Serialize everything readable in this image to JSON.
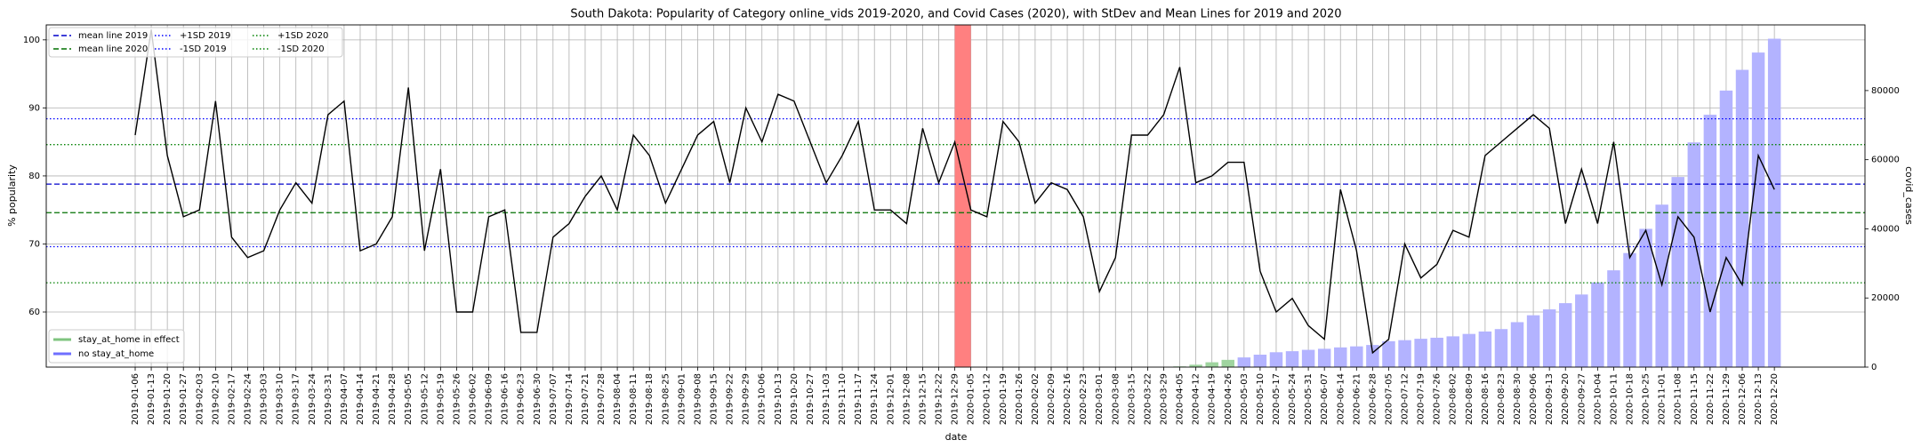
{
  "chart_data": {
    "type": "combo",
    "title": "South Dakota: Popularity of Category online_vids 2019-2020, and Covid Cases (2020), with StDev and Mean Lines for 2019 and 2020",
    "xlabel": "date",
    "ylabel": "% popularity",
    "y2label": "covid_cases",
    "grid": true,
    "categories": [
      "2019-01-06",
      "2019-01-13",
      "2019-01-20",
      "2019-01-27",
      "2019-02-03",
      "2019-02-10",
      "2019-02-17",
      "2019-02-24",
      "2019-03-03",
      "2019-03-10",
      "2019-03-17",
      "2019-03-24",
      "2019-03-31",
      "2019-04-07",
      "2019-04-14",
      "2019-04-21",
      "2019-04-28",
      "2019-05-05",
      "2019-05-12",
      "2019-05-19",
      "2019-05-26",
      "2019-06-02",
      "2019-06-09",
      "2019-06-16",
      "2019-06-23",
      "2019-06-30",
      "2019-07-07",
      "2019-07-14",
      "2019-07-21",
      "2019-07-28",
      "2019-08-04",
      "2019-08-11",
      "2019-08-18",
      "2019-08-25",
      "2019-09-01",
      "2019-09-08",
      "2019-09-15",
      "2019-09-22",
      "2019-09-29",
      "2019-10-06",
      "2019-10-13",
      "2019-10-20",
      "2019-10-27",
      "2019-11-03",
      "2019-11-10",
      "2019-11-17",
      "2019-11-24",
      "2019-12-01",
      "2019-12-08",
      "2019-12-15",
      "2019-12-22",
      "2019-12-29",
      "2020-01-05",
      "2020-01-12",
      "2020-01-19",
      "2020-01-26",
      "2020-02-02",
      "2020-02-09",
      "2020-02-16",
      "2020-02-23",
      "2020-03-01",
      "2020-03-08",
      "2020-03-15",
      "2020-03-22",
      "2020-03-29",
      "2020-04-05",
      "2020-04-12",
      "2020-04-19",
      "2020-04-26",
      "2020-05-03",
      "2020-05-10",
      "2020-05-17",
      "2020-05-24",
      "2020-05-31",
      "2020-06-07",
      "2020-06-14",
      "2020-06-21",
      "2020-06-28",
      "2020-07-05",
      "2020-07-12",
      "2020-07-19",
      "2020-07-26",
      "2020-08-02",
      "2020-08-09",
      "2020-08-16",
      "2020-08-23",
      "2020-08-30",
      "2020-09-06",
      "2020-09-13",
      "2020-09-20",
      "2020-09-27",
      "2020-10-04",
      "2020-10-11",
      "2020-10-18",
      "2020-10-25",
      "2020-11-01",
      "2020-11-08",
      "2020-11-15",
      "2020-11-22",
      "2020-11-29",
      "2020-12-06",
      "2020-12-13",
      "2020-12-20"
    ],
    "line": {
      "color": "#000000",
      "values": [
        86,
        101.5,
        83,
        74,
        75,
        91,
        71,
        68,
        69,
        75,
        79,
        76,
        89,
        91,
        69,
        70,
        74,
        93,
        69,
        81,
        60,
        60,
        74,
        75,
        57,
        57,
        71,
        73,
        77,
        80,
        75,
        86,
        83,
        76,
        81,
        86,
        88,
        79,
        90,
        85,
        92,
        91,
        85,
        79,
        83,
        88,
        75,
        75,
        73,
        87,
        79,
        85,
        75,
        74,
        88,
        85,
        76,
        79,
        78,
        74,
        63,
        68,
        86,
        86,
        89,
        96,
        79,
        80,
        82,
        82,
        66,
        60,
        62,
        58,
        56,
        78,
        69,
        54,
        56,
        70,
        65,
        67,
        72,
        71,
        83,
        85,
        87,
        89,
        87,
        73,
        81,
        73,
        85,
        68,
        72,
        64,
        74,
        71,
        60,
        68,
        64,
        83,
        78
      ]
    },
    "series": [
      {
        "name": "stay_at_home in effect",
        "color": "#9fd49f",
        "axis": "y2",
        "values": [
          null,
          null,
          null,
          null,
          null,
          null,
          null,
          null,
          null,
          null,
          null,
          null,
          null,
          null,
          null,
          null,
          null,
          null,
          null,
          null,
          null,
          null,
          null,
          null,
          null,
          null,
          null,
          null,
          null,
          null,
          null,
          null,
          null,
          null,
          null,
          null,
          null,
          null,
          null,
          null,
          null,
          null,
          null,
          null,
          null,
          null,
          null,
          null,
          null,
          null,
          null,
          null,
          null,
          null,
          null,
          null,
          null,
          null,
          null,
          null,
          null,
          null,
          null,
          null,
          null,
          200,
          700,
          1400,
          2100,
          null,
          null,
          null,
          null,
          null,
          null,
          null,
          null,
          null,
          null,
          null,
          null,
          null,
          null,
          null,
          null,
          null,
          null,
          null,
          null,
          null,
          null,
          null,
          null,
          null,
          null,
          null,
          null,
          null,
          null,
          null,
          null,
          null,
          null
        ]
      },
      {
        "name": "no stay_at_home",
        "color": "#b3b3ff",
        "axis": "y2",
        "values": [
          null,
          null,
          null,
          null,
          null,
          null,
          null,
          null,
          null,
          null,
          null,
          null,
          null,
          null,
          null,
          null,
          null,
          null,
          null,
          null,
          null,
          null,
          null,
          null,
          null,
          null,
          null,
          null,
          null,
          null,
          null,
          null,
          null,
          null,
          null,
          null,
          null,
          null,
          null,
          null,
          null,
          null,
          null,
          null,
          null,
          null,
          null,
          null,
          null,
          null,
          null,
          null,
          null,
          null,
          null,
          null,
          null,
          null,
          null,
          null,
          null,
          null,
          null,
          null,
          null,
          null,
          null,
          null,
          null,
          2800,
          3600,
          4300,
          4600,
          5000,
          5300,
          5700,
          6000,
          6400,
          7500,
          7800,
          8200,
          8500,
          8900,
          9600,
          10300,
          11000,
          13000,
          15000,
          16700,
          18500,
          21000,
          24500,
          28000,
          33000,
          40000,
          47000,
          55000,
          65000,
          73000,
          80000,
          86000,
          91000,
          95000
        ]
      }
    ],
    "lines": [
      {
        "name": "mean line 2019",
        "value": 78.8,
        "color": "#0000cc",
        "style": "dashed"
      },
      {
        "name": "mean line 2020",
        "value": 74.6,
        "color": "#007000",
        "style": "dashed"
      },
      {
        "name": "+1SD 2019",
        "value": 88.4,
        "color": "#0000ff",
        "style": "dotted"
      },
      {
        "name": "-1SD 2019",
        "value": 69.6,
        "color": "#0000ff",
        "style": "dotted"
      },
      {
        "name": "+1SD 2020",
        "value": 84.6,
        "color": "#008000",
        "style": "dotted"
      },
      {
        "name": "-1SD 2020",
        "value": 64.3,
        "color": "#008000",
        "style": "dotted"
      }
    ],
    "ylim": [
      51.9,
      102.2
    ],
    "yticks": [
      60,
      70,
      80,
      90,
      100
    ],
    "y2lim": [
      0,
      99000
    ],
    "y2ticks": [
      0,
      20000,
      40000,
      60000,
      80000
    ]
  }
}
